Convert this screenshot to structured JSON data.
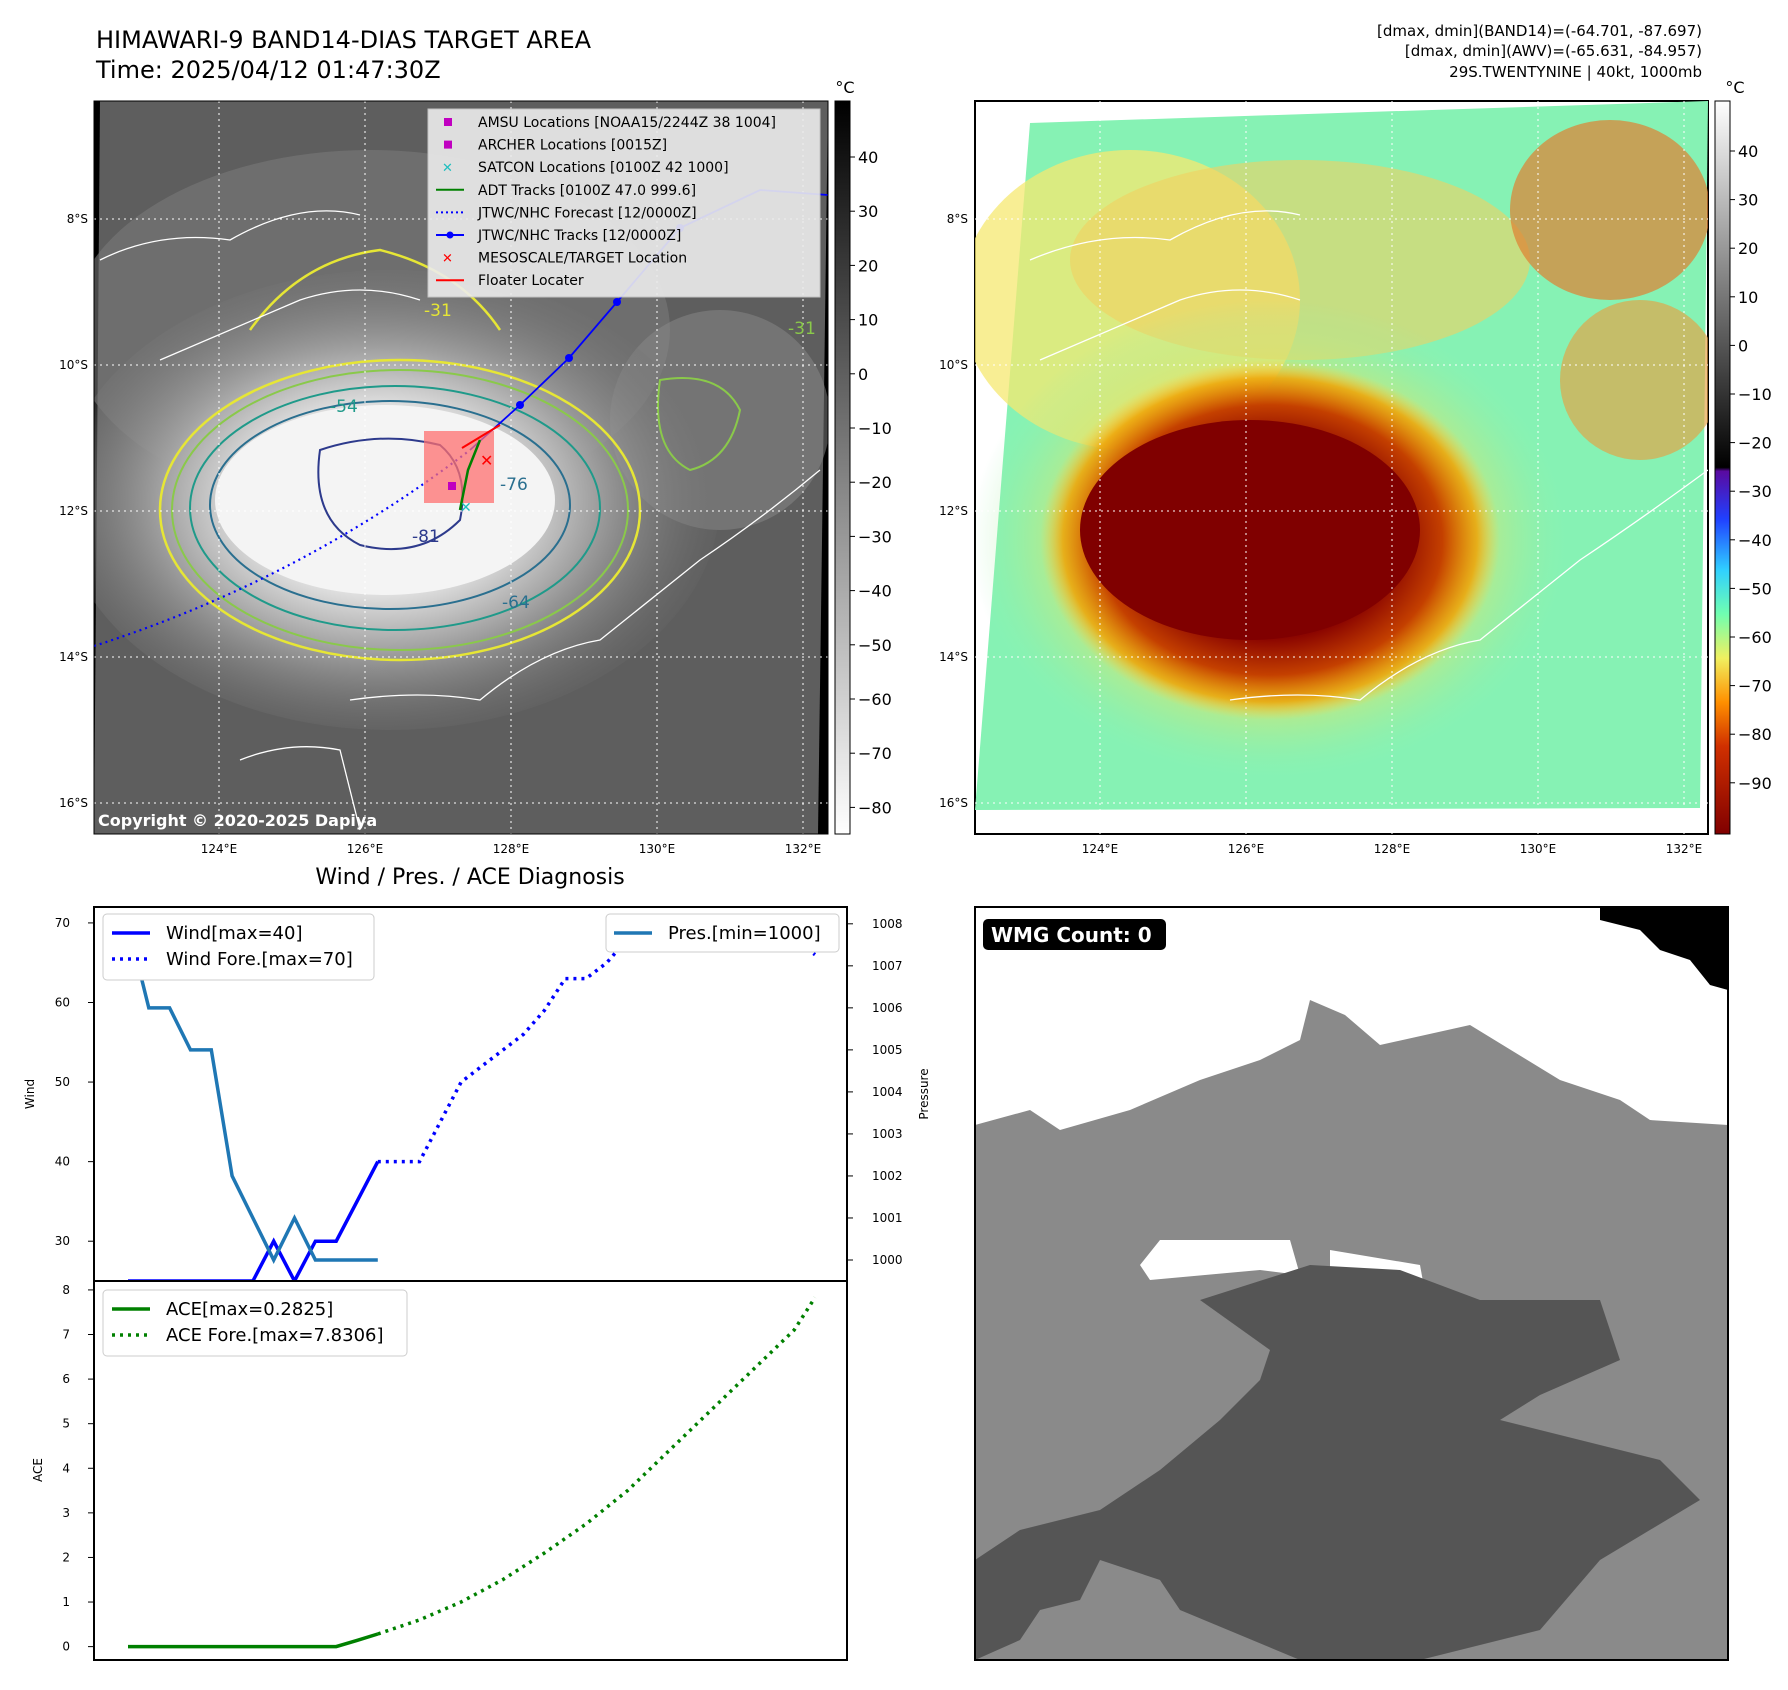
{
  "header": {
    "title_line1": "HIMAWARI-9 BAND14-DIAS TARGET AREA",
    "title_line2": "Time: 2025/04/12 01:47:30Z",
    "right_line1": "[dmax, dmin](BAND14)=(-64.701, -87.697)",
    "right_line2": "[dmax, dmin](AWV)=(-65.631, -84.957)",
    "right_line3": "29S.TWENTYNINE | 40kt, 1000mb"
  },
  "map_axes": {
    "lon_ticks": [
      "124°E",
      "126°E",
      "128°E",
      "130°E",
      "132°E"
    ],
    "lat_ticks": [
      "8°S",
      "10°S",
      "12°S",
      "14°S",
      "16°S"
    ],
    "copyright": "Copyright © 2020-2025 Dapiya"
  },
  "colorbars": {
    "unit": "°C",
    "ir_ticks": [
      "40",
      "30",
      "20",
      "10",
      "0",
      "−10",
      "−20",
      "−30",
      "−40",
      "−50",
      "−60",
      "−70",
      "−80"
    ],
    "color_ticks": [
      "40",
      "30",
      "20",
      "10",
      "0",
      "−10",
      "−20",
      "−30",
      "−40",
      "−50",
      "−60",
      "−70",
      "−80",
      "−90"
    ]
  },
  "legend": [
    {
      "label": "AMSU Locations [NOAA15/2244Z 38 1004]",
      "color": "#c000c0",
      "marker": "square"
    },
    {
      "label": "ARCHER Locations [0015Z]",
      "color": "#c000c0",
      "marker": "square"
    },
    {
      "label": "SATCON Locations [0100Z 42 1000]",
      "color": "#1fbfbf",
      "marker": "x"
    },
    {
      "label": "ADT Tracks [0100Z 47.0 999.6]",
      "color": "#008000",
      "marker": "line"
    },
    {
      "label": "JTWC/NHC Forecast [12/0000Z]",
      "color": "#0000ff",
      "marker": "dotted"
    },
    {
      "label": "JTWC/NHC Tracks [12/0000Z]",
      "color": "#0000ff",
      "marker": "line-dot"
    },
    {
      "label": "MESOSCALE/TARGET Location",
      "color": "#ff0000",
      "marker": "x"
    },
    {
      "label": "Floater Locater",
      "color": "#ff0000",
      "marker": "line"
    }
  ],
  "contour_labels": [
    "-31",
    "-54",
    "-64",
    "-76",
    "-81",
    "-31"
  ],
  "wmg": {
    "label": "WMG Count: 0"
  },
  "chart_data": [
    {
      "type": "line",
      "title": "Wind / Pres. / ACE Diagnosis",
      "ylabel": "Wind",
      "ylabel_right": "Pressure",
      "x": [
        0,
        1,
        2,
        3,
        4,
        5,
        6,
        7,
        8,
        9,
        10,
        11,
        12,
        13,
        14,
        15,
        16,
        17,
        18,
        19,
        20,
        21,
        22,
        23,
        24,
        25,
        26,
        27,
        28,
        29,
        30,
        31,
        32,
        33
      ],
      "ylim": [
        25,
        72
      ],
      "y2lim": [
        999.5,
        1008.4
      ],
      "y_ticks": [
        30,
        40,
        50,
        60,
        70
      ],
      "y2_ticks": [
        1000,
        1001,
        1002,
        1003,
        1004,
        1005,
        1006,
        1007,
        1008
      ],
      "series": [
        {
          "name": "Wind[max=40]",
          "color": "#0000ff",
          "style": "solid",
          "axis": "left",
          "points": [
            [
              0,
              25
            ],
            [
              1,
              25
            ],
            [
              2,
              25
            ],
            [
              3,
              25
            ],
            [
              4,
              25
            ],
            [
              5,
              25
            ],
            [
              6,
              25
            ],
            [
              7,
              30
            ],
            [
              8,
              25
            ],
            [
              9,
              30
            ],
            [
              10,
              30
            ],
            [
              11,
              35
            ],
            [
              12,
              40
            ]
          ]
        },
        {
          "name": "Wind Fore.[max=70]",
          "color": "#0000ff",
          "style": "dotted",
          "axis": "left",
          "points": [
            [
              12,
              40
            ],
            [
              14,
              40
            ],
            [
              15,
              45
            ],
            [
              16,
              50
            ],
            [
              17,
              52
            ],
            [
              18,
              54
            ],
            [
              19,
              56
            ],
            [
              20,
              59
            ],
            [
              21,
              63
            ],
            [
              22,
              63
            ],
            [
              23,
              65
            ],
            [
              24,
              68
            ],
            [
              25,
              70
            ],
            [
              26,
              70
            ],
            [
              27,
              70
            ],
            [
              28,
              70
            ],
            [
              29,
              70
            ],
            [
              30,
              70
            ],
            [
              31,
              70
            ],
            [
              32,
              68
            ],
            [
              33,
              66
            ]
          ]
        },
        {
          "name": "Pres.[min=1000]",
          "color": "#1f77b4",
          "style": "solid",
          "axis": "right",
          "points": [
            [
              0,
              1008
            ],
            [
              1,
              1006
            ],
            [
              2,
              1006
            ],
            [
              3,
              1005
            ],
            [
              4,
              1005
            ],
            [
              5,
              1002
            ],
            [
              6,
              1001
            ],
            [
              7,
              1000
            ],
            [
              8,
              1001
            ],
            [
              9,
              1000
            ],
            [
              10,
              1000
            ],
            [
              11,
              1000
            ],
            [
              12,
              1000
            ]
          ]
        }
      ]
    },
    {
      "type": "line",
      "ylabel": "ACE",
      "ylim": [
        -0.3,
        8.2
      ],
      "y_ticks": [
        0,
        1,
        2,
        3,
        4,
        5,
        6,
        7,
        8
      ],
      "series": [
        {
          "name": "ACE[max=0.2825]",
          "color": "#008000",
          "style": "solid",
          "points": [
            [
              0,
              0
            ],
            [
              2,
              0
            ],
            [
              4,
              0
            ],
            [
              6,
              0
            ],
            [
              8,
              0
            ],
            [
              10,
              0
            ],
            [
              11,
              0.14
            ],
            [
              12,
              0.2825
            ]
          ]
        },
        {
          "name": "ACE Fore.[max=7.8306]",
          "color": "#008000",
          "style": "dotted",
          "points": [
            [
              12,
              0.2825
            ],
            [
              14,
              0.6
            ],
            [
              16,
              1.0
            ],
            [
              18,
              1.5
            ],
            [
              20,
              2.1
            ],
            [
              22,
              2.75
            ],
            [
              24,
              3.5
            ],
            [
              26,
              4.4
            ],
            [
              28,
              5.3
            ],
            [
              30,
              6.2
            ],
            [
              32,
              7.1
            ],
            [
              33,
              7.8306
            ]
          ]
        }
      ]
    }
  ]
}
